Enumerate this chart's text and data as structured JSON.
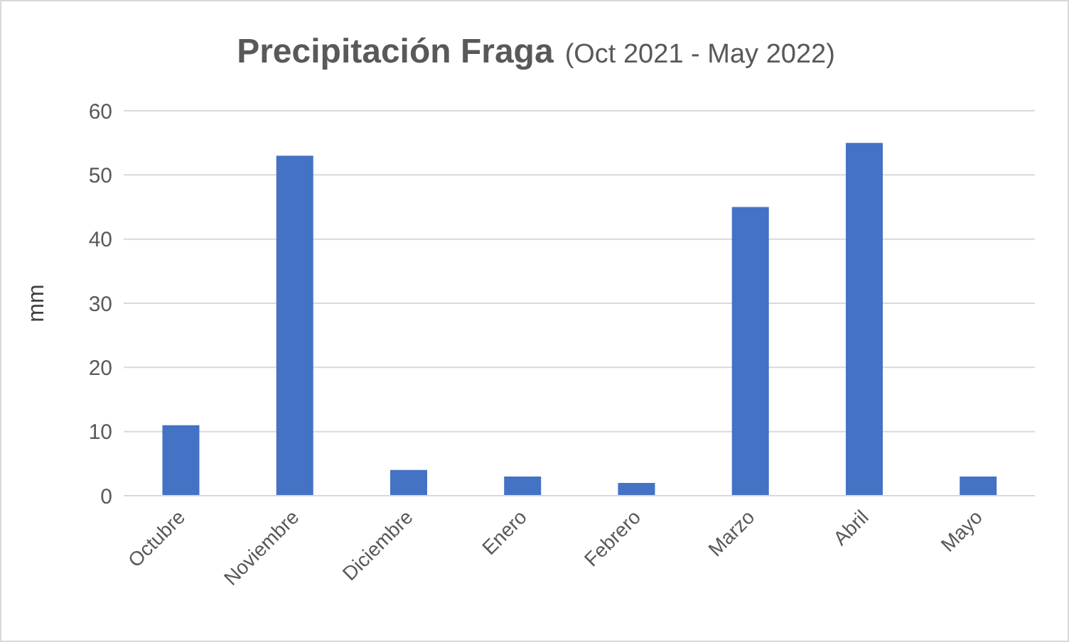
{
  "chart_data": {
    "type": "bar",
    "title": "Precipitación Fraga",
    "subtitle": "(Oct 2021 - May 2022)",
    "ylabel": "mm",
    "categories": [
      "Octubre",
      "Noviembre",
      "Diciembre",
      "Enero",
      "Febrero",
      "Marzo",
      "Abril",
      "Mayo"
    ],
    "values": [
      11,
      53,
      4,
      3,
      2,
      45,
      55,
      3
    ],
    "color": "#4472c4",
    "ylim": [
      0,
      60
    ],
    "yticks": [
      0,
      10,
      20,
      30,
      40,
      50,
      60
    ],
    "grid": "y"
  }
}
